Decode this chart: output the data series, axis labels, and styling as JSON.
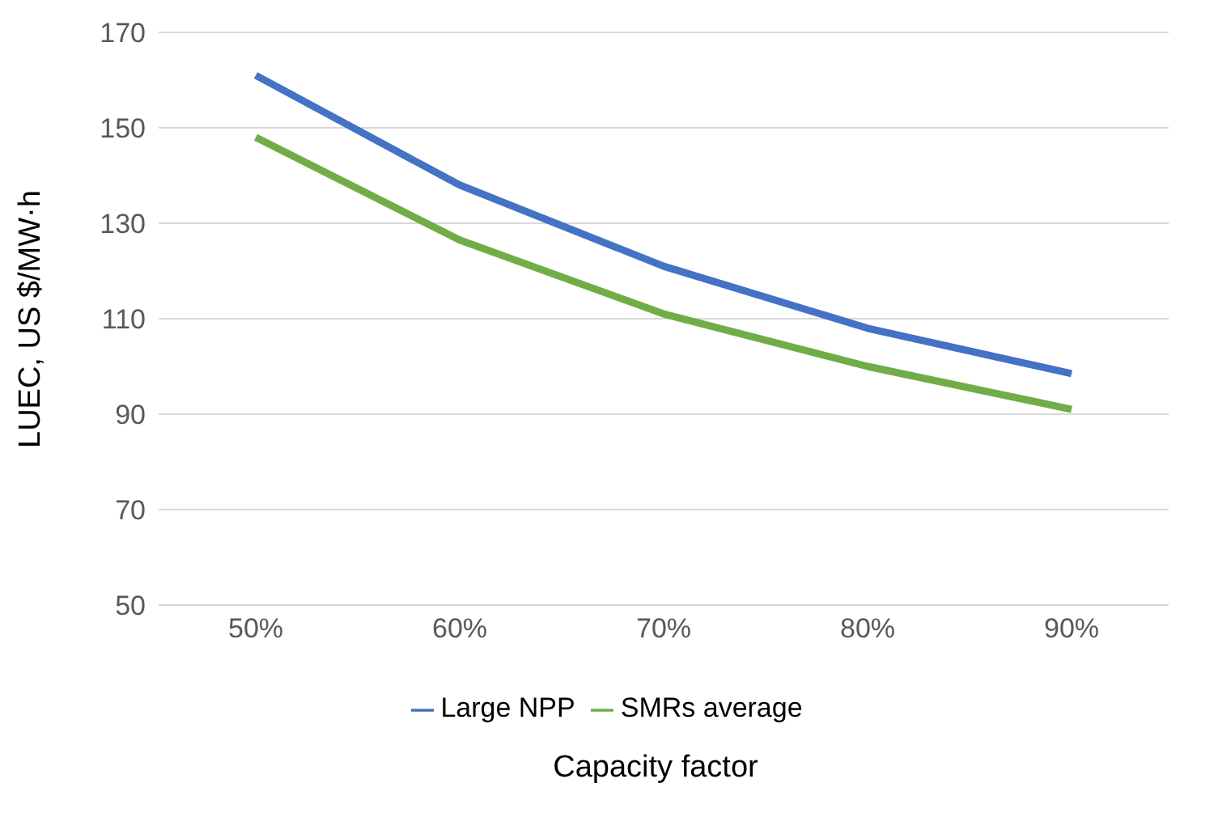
{
  "chart_data": {
    "type": "line",
    "xlabel": "Capacity factor",
    "ylabel": "LUEC, US $/MW·h",
    "categories": [
      "50%",
      "60%",
      "70%",
      "80%",
      "90%"
    ],
    "series": [
      {
        "name": "Large NPP",
        "color": "#4472c4",
        "values": [
          161,
          138,
          121,
          108,
          98.5
        ]
      },
      {
        "name": "SMRs average",
        "color": "#70ad47",
        "values": [
          148,
          126.5,
          111,
          100,
          91
        ]
      }
    ],
    "ylim": [
      50,
      170
    ],
    "yticks": [
      50,
      70,
      90,
      110,
      130,
      150,
      170
    ],
    "grid": "y",
    "legend": "bottom",
    "marker": "none"
  }
}
